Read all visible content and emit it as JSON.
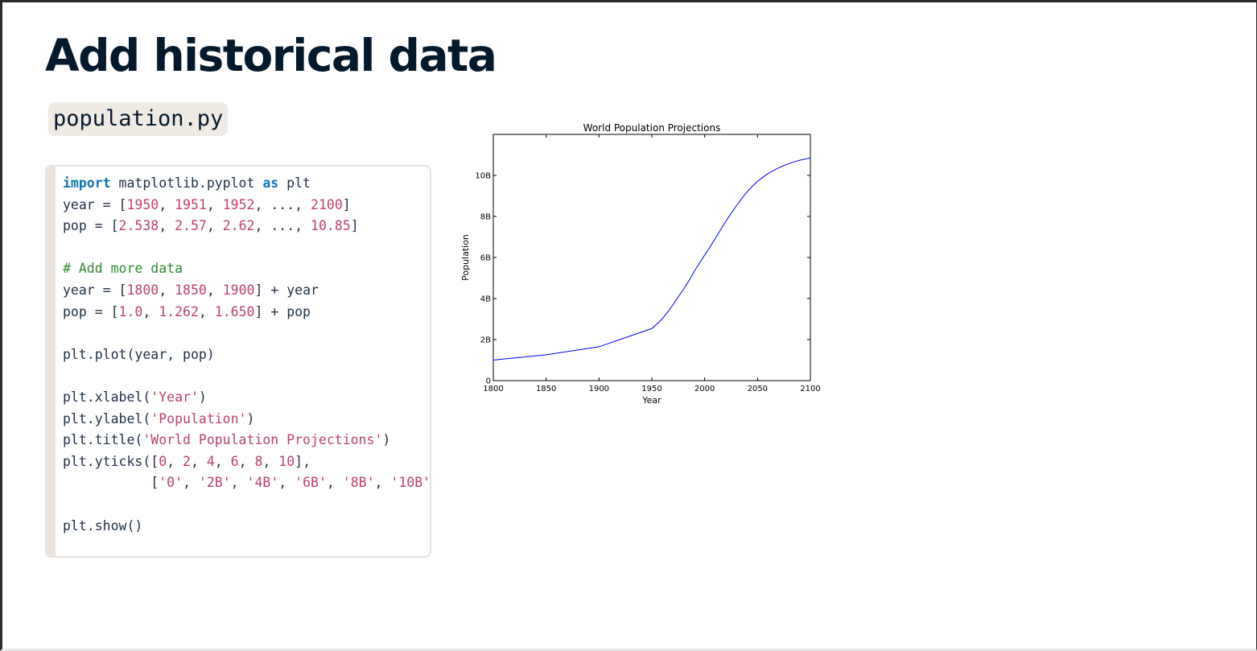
{
  "slide": {
    "title": "Add historical data",
    "filename": "population.py"
  },
  "code": {
    "lines": [
      [
        {
          "t": "import",
          "c": "kw"
        },
        {
          "t": " matplotlib.pyplot ",
          "c": ""
        },
        {
          "t": "as",
          "c": "kw"
        },
        {
          "t": " plt",
          "c": ""
        }
      ],
      [
        {
          "t": "year = [",
          "c": ""
        },
        {
          "t": "1950",
          "c": "num"
        },
        {
          "t": ", ",
          "c": ""
        },
        {
          "t": "1951",
          "c": "num"
        },
        {
          "t": ", ",
          "c": ""
        },
        {
          "t": "1952",
          "c": "num"
        },
        {
          "t": ", ..., ",
          "c": ""
        },
        {
          "t": "2100",
          "c": "num"
        },
        {
          "t": "]",
          "c": ""
        }
      ],
      [
        {
          "t": "pop = [",
          "c": ""
        },
        {
          "t": "2.538",
          "c": "num"
        },
        {
          "t": ", ",
          "c": ""
        },
        {
          "t": "2.57",
          "c": "num"
        },
        {
          "t": ", ",
          "c": ""
        },
        {
          "t": "2.62",
          "c": "num"
        },
        {
          "t": ", ..., ",
          "c": ""
        },
        {
          "t": "10.85",
          "c": "num"
        },
        {
          "t": "]",
          "c": ""
        }
      ],
      [],
      [
        {
          "t": "# Add more data",
          "c": "cm"
        }
      ],
      [
        {
          "t": "year = [",
          "c": ""
        },
        {
          "t": "1800",
          "c": "num"
        },
        {
          "t": ", ",
          "c": ""
        },
        {
          "t": "1850",
          "c": "num"
        },
        {
          "t": ", ",
          "c": ""
        },
        {
          "t": "1900",
          "c": "num"
        },
        {
          "t": "] + year",
          "c": ""
        }
      ],
      [
        {
          "t": "pop = [",
          "c": ""
        },
        {
          "t": "1.0",
          "c": "num"
        },
        {
          "t": ", ",
          "c": ""
        },
        {
          "t": "1.262",
          "c": "num"
        },
        {
          "t": ", ",
          "c": ""
        },
        {
          "t": "1.650",
          "c": "num"
        },
        {
          "t": "] + pop",
          "c": ""
        }
      ],
      [],
      [
        {
          "t": "plt.plot(year, pop)",
          "c": ""
        }
      ],
      [],
      [
        {
          "t": "plt.xlabel(",
          "c": ""
        },
        {
          "t": "'Year'",
          "c": "str"
        },
        {
          "t": ")",
          "c": ""
        }
      ],
      [
        {
          "t": "plt.ylabel(",
          "c": ""
        },
        {
          "t": "'Population'",
          "c": "str"
        },
        {
          "t": ")",
          "c": ""
        }
      ],
      [
        {
          "t": "plt.title(",
          "c": ""
        },
        {
          "t": "'World Population Projections'",
          "c": "str"
        },
        {
          "t": ")",
          "c": ""
        }
      ],
      [
        {
          "t": "plt.yticks([",
          "c": ""
        },
        {
          "t": "0",
          "c": "num"
        },
        {
          "t": ", ",
          "c": ""
        },
        {
          "t": "2",
          "c": "num"
        },
        {
          "t": ", ",
          "c": ""
        },
        {
          "t": "4",
          "c": "num"
        },
        {
          "t": ", ",
          "c": ""
        },
        {
          "t": "6",
          "c": "num"
        },
        {
          "t": ", ",
          "c": ""
        },
        {
          "t": "8",
          "c": "num"
        },
        {
          "t": ", ",
          "c": ""
        },
        {
          "t": "10",
          "c": "num"
        },
        {
          "t": "],",
          "c": ""
        }
      ],
      [
        {
          "t": "           [",
          "c": ""
        },
        {
          "t": "'0'",
          "c": "str"
        },
        {
          "t": ", ",
          "c": ""
        },
        {
          "t": "'2B'",
          "c": "str"
        },
        {
          "t": ", ",
          "c": ""
        },
        {
          "t": "'4B'",
          "c": "str"
        },
        {
          "t": ", ",
          "c": ""
        },
        {
          "t": "'6B'",
          "c": "str"
        },
        {
          "t": ", ",
          "c": ""
        },
        {
          "t": "'8B'",
          "c": "str"
        },
        {
          "t": ", ",
          "c": ""
        },
        {
          "t": "'10B'",
          "c": "str"
        },
        {
          "t": "])",
          "c": ""
        }
      ],
      [],
      [
        {
          "t": "plt.show()",
          "c": ""
        }
      ]
    ]
  },
  "chart_data": {
    "type": "line",
    "title": "World Population Projections",
    "xlabel": "Year",
    "ylabel": "Population",
    "xlim": [
      1800,
      2100
    ],
    "ylim": [
      0,
      12
    ],
    "xticks": [
      1800,
      1850,
      1900,
      1950,
      2000,
      2050,
      2100
    ],
    "yticks": [
      0,
      2,
      4,
      6,
      8,
      10
    ],
    "ytick_labels": [
      "0",
      "2B",
      "4B",
      "6B",
      "8B",
      "10B"
    ],
    "grid": false,
    "line_color": "#0000ff",
    "series": [
      {
        "x": [
          1800,
          1850,
          1900,
          1950,
          1955,
          1960,
          1965,
          1970,
          1975,
          1980,
          1985,
          1990,
          1995,
          2000,
          2005,
          2010,
          2015,
          2020,
          2025,
          2030,
          2035,
          2040,
          2045,
          2050,
          2055,
          2060,
          2065,
          2070,
          2075,
          2080,
          2085,
          2090,
          2095,
          2100
        ],
        "y": [
          1.0,
          1.262,
          1.65,
          2.538,
          2.77,
          3.02,
          3.34,
          3.7,
          4.08,
          4.45,
          4.86,
          5.31,
          5.72,
          6.12,
          6.51,
          6.93,
          7.35,
          7.76,
          8.15,
          8.52,
          8.87,
          9.19,
          9.47,
          9.71,
          9.91,
          10.09,
          10.24,
          10.37,
          10.48,
          10.58,
          10.67,
          10.74,
          10.8,
          10.85
        ]
      }
    ]
  }
}
